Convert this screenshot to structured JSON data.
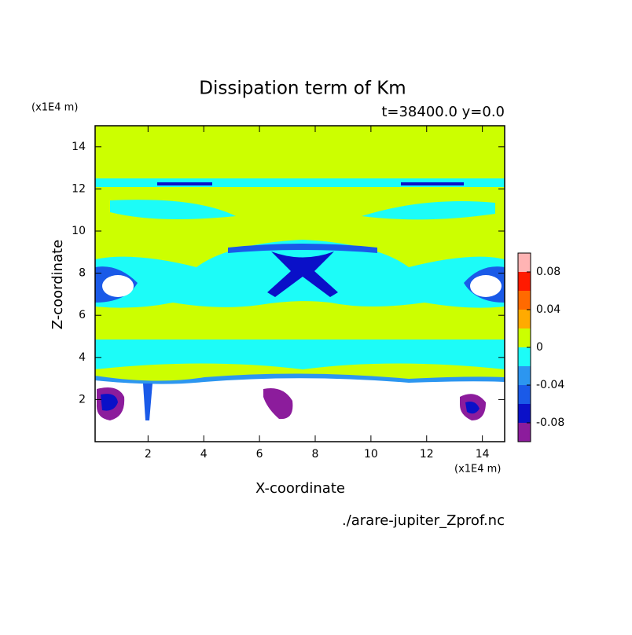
{
  "chart_data": {
    "type": "contour",
    "title": "Dissipation term of Km",
    "subtitle": "t=38400.0 y=0.0",
    "x_label": "X-coordinate",
    "y_label": "Z-coordinate",
    "x_unit": "(x1E4 m)",
    "y_unit": "(x1E4 m)",
    "source": "./arare-jupiter_Zprof.nc",
    "xlim": [
      0.1,
      14.8
    ],
    "ylim": [
      0,
      15
    ],
    "xticks": [
      2,
      4,
      6,
      8,
      10,
      12,
      14
    ],
    "yticks": [
      2,
      4,
      6,
      8,
      10,
      12,
      14
    ],
    "colorbar": {
      "levels": [
        -0.1,
        -0.08,
        -0.06,
        -0.04,
        -0.02,
        0,
        0.02,
        0.04,
        0.06,
        0.08,
        0.1
      ],
      "colors": [
        "#8c1c9c",
        "#0a10c8",
        "#1a5ae8",
        "#2c96f0",
        "#1cfcf8",
        "#ccff00",
        "#ffaa00",
        "#ff6a00",
        "#ff1a00",
        "#ffb4b4"
      ],
      "ticks": [
        -0.08,
        -0.04,
        0,
        0.04,
        0.08
      ]
    }
  }
}
